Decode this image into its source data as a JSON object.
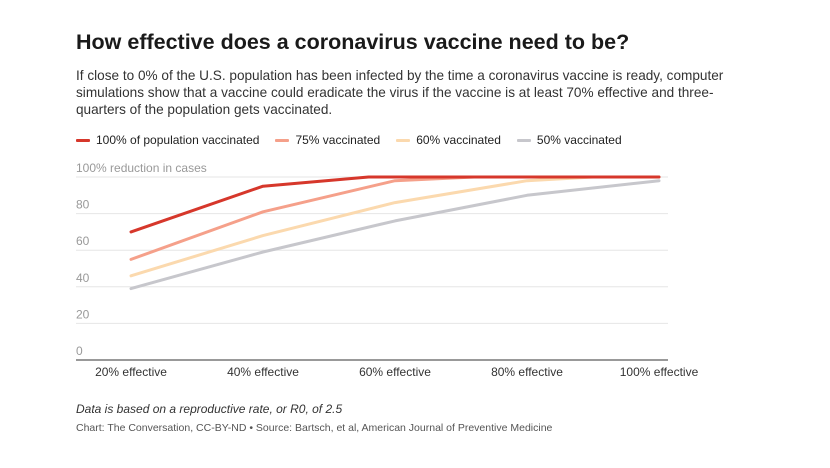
{
  "chart_data": {
    "type": "line",
    "title": "How effective does a coronavirus vaccine need to be?",
    "subtitle": "If close to 0% of the U.S. population has been infected by the time a coronavirus vaccine is ready, computer simulations show that a vaccine could eradicate the virus if the vaccine is at least 70% effective and three-quarters of the population gets vaccinated.",
    "categories": [
      "20% effective",
      "40% effective",
      "60% effective",
      "80% effective",
      "100% effective"
    ],
    "y_ticks": [
      {
        "value": 0,
        "label": "0"
      },
      {
        "value": 20,
        "label": "20"
      },
      {
        "value": 40,
        "label": "40"
      },
      {
        "value": 60,
        "label": "60"
      },
      {
        "value": 80,
        "label": "80"
      },
      {
        "value": 100,
        "label": "100% reduction in cases"
      }
    ],
    "ylim": [
      0,
      100
    ],
    "grid": true,
    "legend_position": "top-left",
    "series": [
      {
        "name": "100% of population vaccinated",
        "color": "#d6372b",
        "points": [
          [
            0,
            70
          ],
          [
            1,
            95
          ],
          [
            1.8,
            100
          ],
          [
            4,
            100
          ]
        ]
      },
      {
        "name": "75% vaccinated",
        "color": "#f5a08a",
        "points": [
          [
            0,
            55
          ],
          [
            1,
            81
          ],
          [
            2,
            98
          ],
          [
            2.6,
            100
          ],
          [
            4,
            100
          ]
        ]
      },
      {
        "name": "60% vaccinated",
        "color": "#fbd9ae",
        "points": [
          [
            0,
            46
          ],
          [
            1,
            68
          ],
          [
            2,
            86
          ],
          [
            3,
            98
          ],
          [
            3.5,
            100
          ],
          [
            4,
            100
          ]
        ]
      },
      {
        "name": "50% vaccinated",
        "color": "#c7c7cc",
        "points": [
          [
            0,
            39
          ],
          [
            1,
            59
          ],
          [
            2,
            76
          ],
          [
            3,
            90
          ],
          [
            4,
            98
          ]
        ]
      }
    ],
    "note": "Data is based on a reproductive rate, or R0, of 2.5",
    "credit": "Chart: The Conversation, CC-BY-ND • Source: Bartsch, et al, American Journal of Preventive Medicine"
  }
}
